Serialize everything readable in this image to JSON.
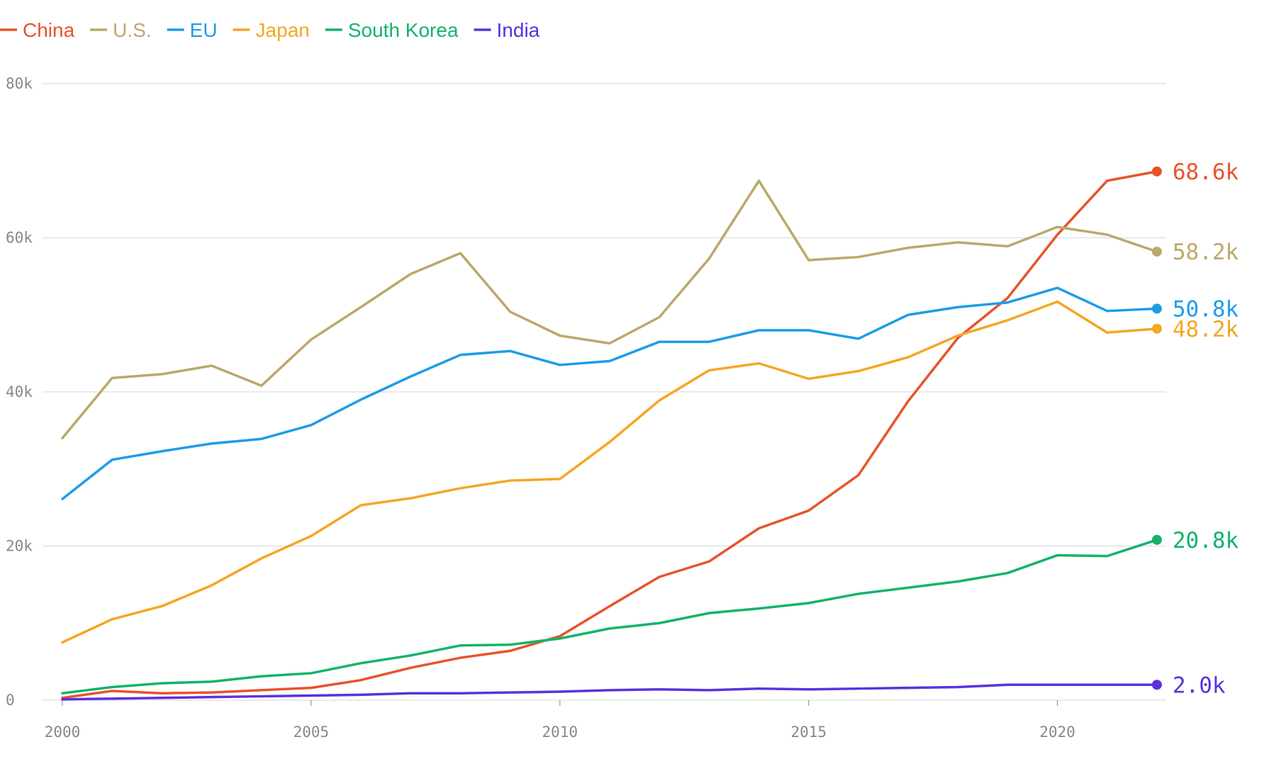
{
  "chart_data": {
    "type": "line",
    "title": "",
    "xlabel": "",
    "ylabel": "",
    "x": [
      2000,
      2001,
      2002,
      2003,
      2004,
      2005,
      2006,
      2007,
      2008,
      2009,
      2010,
      2011,
      2012,
      2013,
      2014,
      2015,
      2016,
      2017,
      2018,
      2019,
      2020,
      2021,
      2022
    ],
    "xlim": [
      2000,
      2022
    ],
    "ylim": [
      0,
      80000
    ],
    "x_ticks": [
      2000,
      2005,
      2010,
      2015,
      2020
    ],
    "x_tick_labels": [
      "2000",
      "2005",
      "2010",
      "2015",
      "2020"
    ],
    "y_ticks": [
      0,
      20000,
      40000,
      60000,
      80000
    ],
    "y_tick_labels": [
      "0",
      "20k",
      "40k",
      "60k",
      "80k"
    ],
    "grid": "horizontal",
    "legend_position": "top-left",
    "series": [
      {
        "name": "China",
        "color": "#e8532b",
        "end_label": "68.6k",
        "values": [
          300,
          1200,
          900,
          1000,
          1300,
          1600,
          2600,
          4200,
          5500,
          6400,
          8300,
          12200,
          16000,
          18000,
          22300,
          24600,
          29200,
          38800,
          47000,
          52200,
          60400,
          67400,
          68600
        ]
      },
      {
        "name": "U.S.",
        "color": "#bba96a",
        "end_label": "58.2k",
        "values": [
          34000,
          41800,
          42300,
          43400,
          40800,
          46800,
          51000,
          55300,
          58000,
          50400,
          47300,
          46300,
          49700,
          57300,
          67400,
          57100,
          57500,
          58700,
          59400,
          58900,
          61400,
          60400,
          58200
        ]
      },
      {
        "name": "EU",
        "color": "#1e9ce8",
        "end_label": "50.8k",
        "values": [
          26100,
          31200,
          32300,
          33300,
          33900,
          35700,
          39000,
          42000,
          44800,
          45300,
          43500,
          44000,
          46500,
          46500,
          48000,
          48000,
          46900,
          50000,
          51000,
          51600,
          53500,
          50500,
          50800
        ]
      },
      {
        "name": "Japan",
        "color": "#f5a623",
        "end_label": "48.2k",
        "values": [
          7500,
          10500,
          12200,
          14900,
          18400,
          21300,
          25300,
          26200,
          27500,
          28500,
          28700,
          33500,
          38900,
          42800,
          43700,
          41700,
          42700,
          44500,
          47300,
          49300,
          51700,
          47700,
          48200
        ]
      },
      {
        "name": "South Korea",
        "color": "#13b36b",
        "end_label": "20.8k",
        "values": [
          900,
          1700,
          2200,
          2400,
          3100,
          3500,
          4800,
          5800,
          7100,
          7200,
          8000,
          9300,
          10000,
          11300,
          11900,
          12600,
          13800,
          14600,
          15400,
          16500,
          18800,
          18700,
          20800
        ]
      },
      {
        "name": "India",
        "color": "#5b31e0",
        "end_label": "2.0k",
        "values": [
          100,
          200,
          300,
          400,
          500,
          600,
          700,
          900,
          900,
          1000,
          1100,
          1300,
          1400,
          1300,
          1500,
          1400,
          1500,
          1600,
          1700,
          2000,
          2000,
          2000,
          2000
        ]
      }
    ]
  }
}
